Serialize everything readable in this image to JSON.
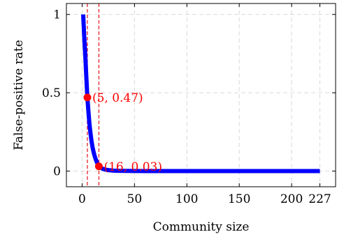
{
  "chart_data": {
    "type": "line",
    "title": "",
    "xlabel": "Community size",
    "ylabel": "False-positive rate",
    "xlim": [
      -15,
      242
    ],
    "ylim": [
      -0.1,
      1.07
    ],
    "xticks": [
      0,
      50,
      100,
      150,
      200,
      227
    ],
    "xtick_labels": [
      "0",
      "50",
      "100",
      "150",
      "200",
      "227"
    ],
    "yticks": [
      0,
      0.5,
      1
    ],
    "ytick_labels": [
      "0",
      "0.5",
      "1"
    ],
    "grid": true,
    "series": [
      {
        "color": "#0000ff",
        "x": [
          1,
          2,
          3,
          4,
          5,
          6,
          7,
          8,
          9,
          10,
          11,
          12,
          13,
          14,
          15,
          16,
          18,
          20,
          22,
          25,
          30,
          35,
          40,
          50,
          60,
          80,
          100,
          150,
          200,
          227
        ],
        "y": [
          1.0,
          0.86,
          0.74,
          0.6,
          0.47,
          0.38,
          0.3,
          0.24,
          0.19,
          0.15,
          0.12,
          0.095,
          0.075,
          0.057,
          0.043,
          0.03,
          0.02,
          0.014,
          0.01,
          0.006,
          0.003,
          0.0015,
          0.001,
          0.0005,
          0.0002,
          0.0001,
          0,
          0,
          0,
          0
        ]
      }
    ],
    "vlines": [
      {
        "x": 5,
        "color": "#e8202a",
        "style": "dashed"
      },
      {
        "x": 16,
        "color": "#e8202a",
        "style": "dashed"
      }
    ],
    "annotations": [
      {
        "x": 5,
        "y": 0.47,
        "label": "(5, 0.47)",
        "color": "#ff0000"
      },
      {
        "x": 16,
        "y": 0.03,
        "label": "(16, 0.03)",
        "color": "#ff0000"
      }
    ]
  }
}
